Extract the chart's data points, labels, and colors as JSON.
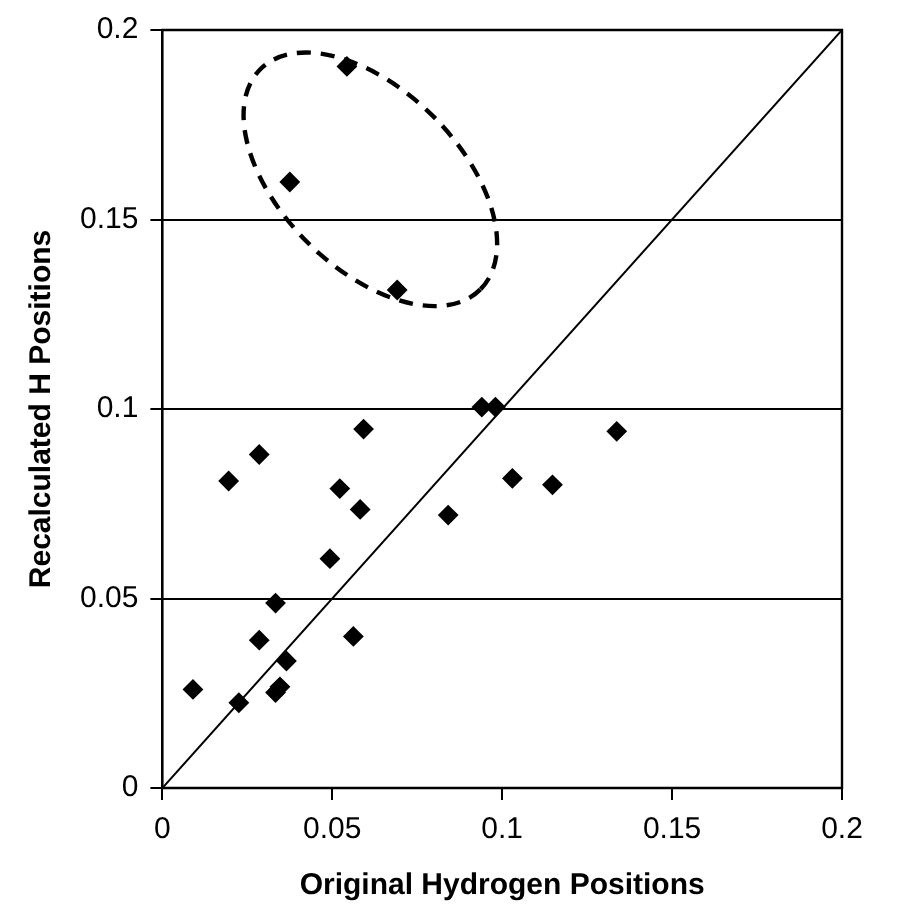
{
  "chart_data": {
    "type": "scatter",
    "xlabel": "Original Hydrogen Positions",
    "ylabel": "Recalculated H Positions",
    "xlim": [
      0,
      0.2
    ],
    "ylim": [
      0,
      0.2
    ],
    "xticks": [
      0,
      0.05,
      0.1,
      0.15,
      0.2
    ],
    "yticks": [
      0,
      0.05,
      0.1,
      0.15,
      0.2
    ],
    "grid": "y",
    "legend": false,
    "marker": "diamond",
    "series": [
      {
        "color": "#000000",
        "x": [
          0.009,
          0.0225,
          0.0195,
          0.0285,
          0.0285,
          0.0333,
          0.0333,
          0.0346,
          0.0365,
          0.0493,
          0.0522,
          0.0562,
          0.0582,
          0.0592,
          0.0841,
          0.094,
          0.098,
          0.103,
          0.1148,
          0.1337,
          0.0543,
          0.0375,
          0.0691
        ],
        "values": [
          0.026,
          0.0225,
          0.081,
          0.088,
          0.039,
          0.0488,
          0.0252,
          0.0267,
          0.0335,
          0.0605,
          0.079,
          0.04,
          0.0735,
          0.0947,
          0.072,
          0.1005,
          0.1005,
          0.0817,
          0.08,
          0.0941,
          0.1904,
          0.1599,
          0.1314
        ]
      },
      {
        "type": "line",
        "color": "#000000",
        "marker": "none",
        "x": [
          0,
          0.2
        ],
        "values": [
          0,
          0.2
        ]
      }
    ]
  }
}
